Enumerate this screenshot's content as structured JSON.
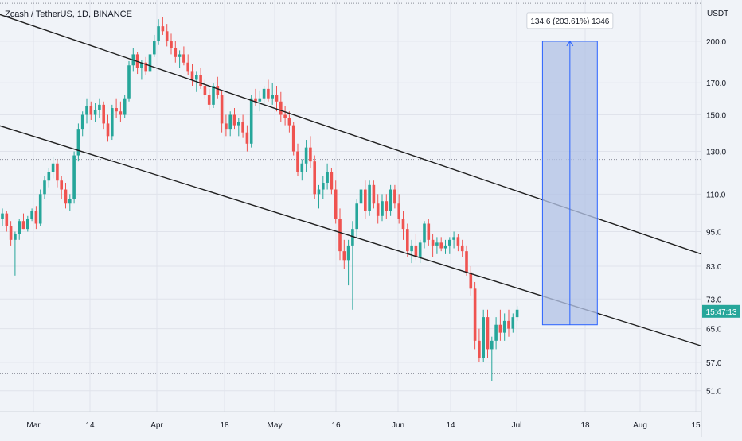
{
  "header": {
    "symbol_line": "Zcash / TetherUS, 1D, BINANCE"
  },
  "price_axis": {
    "unit": "USDT",
    "ticks": [
      "200.0",
      "170.0",
      "150.0",
      "130.0",
      "110.0",
      "95.0",
      "83.0",
      "73.0",
      "65.0",
      "57.0",
      "51.0"
    ],
    "current_price_label": "15:47:13"
  },
  "measure_tool": {
    "label": "134.6 (203.61%) 1346",
    "from_price": 66,
    "to_price": 200
  },
  "colors": {
    "background": "#f0f3f8",
    "up": "#26a69a",
    "down": "#ef5350",
    "trendline": "#1f1f1f",
    "measure_fill": "#b3c3e6",
    "measure_line": "#2962ff",
    "current_badge": "#26a69a"
  },
  "chart_data": {
    "type": "candlestick",
    "title": "Zcash / TetherUS, 1D, BINANCE",
    "y_unit": "USDT",
    "y_scale": "log",
    "ylim": [
      47,
      235
    ],
    "x_ticks": [
      "Mar",
      "14",
      "Apr",
      "18",
      "May",
      "16",
      "Jun",
      "14",
      "Jul",
      "18",
      "Aug",
      "15"
    ],
    "candles": [
      [
        100,
        104,
        97,
        102
      ],
      [
        102,
        103,
        95,
        97
      ],
      [
        97,
        99,
        90,
        92
      ],
      [
        92,
        95,
        80,
        94
      ],
      [
        94,
        100,
        92,
        99
      ],
      [
        99,
        102,
        96,
        96
      ],
      [
        96,
        101,
        95,
        100
      ],
      [
        100,
        104,
        99,
        103
      ],
      [
        103,
        105,
        96,
        98
      ],
      [
        98,
        112,
        97,
        110
      ],
      [
        110,
        118,
        108,
        116
      ],
      [
        116,
        122,
        113,
        120
      ],
      [
        120,
        127,
        117,
        124
      ],
      [
        124,
        126,
        113,
        116
      ],
      [
        116,
        118,
        108,
        112
      ],
      [
        112,
        115,
        104,
        106
      ],
      [
        106,
        110,
        103,
        108
      ],
      [
        108,
        130,
        106,
        128
      ],
      [
        128,
        145,
        125,
        142
      ],
      [
        142,
        152,
        138,
        150
      ],
      [
        150,
        160,
        145,
        155
      ],
      [
        155,
        158,
        147,
        150
      ],
      [
        150,
        157,
        146,
        153
      ],
      [
        153,
        160,
        148,
        156
      ],
      [
        156,
        158,
        142,
        145
      ],
      [
        145,
        150,
        135,
        138
      ],
      [
        138,
        156,
        136,
        154
      ],
      [
        154,
        160,
        148,
        152
      ],
      [
        152,
        158,
        146,
        150
      ],
      [
        150,
        162,
        148,
        160
      ],
      [
        160,
        185,
        158,
        182
      ],
      [
        182,
        195,
        178,
        190
      ],
      [
        190,
        192,
        176,
        180
      ],
      [
        180,
        186,
        172,
        184
      ],
      [
        184,
        188,
        175,
        178
      ],
      [
        178,
        192,
        176,
        190
      ],
      [
        190,
        205,
        188,
        200
      ],
      [
        200,
        218,
        197,
        212
      ],
      [
        212,
        220,
        205,
        208
      ],
      [
        208,
        214,
        196,
        200
      ],
      [
        200,
        206,
        190,
        195
      ],
      [
        195,
        200,
        184,
        188
      ],
      [
        188,
        193,
        180,
        190
      ],
      [
        190,
        196,
        182,
        184
      ],
      [
        184,
        190,
        175,
        178
      ],
      [
        178,
        183,
        168,
        172
      ],
      [
        172,
        178,
        164,
        175
      ],
      [
        175,
        180,
        166,
        168
      ],
      [
        168,
        172,
        160,
        162
      ],
      [
        162,
        166,
        153,
        156
      ],
      [
        156,
        170,
        154,
        168
      ],
      [
        168,
        174,
        160,
        162
      ],
      [
        162,
        165,
        140,
        145
      ],
      [
        145,
        150,
        138,
        142
      ],
      [
        142,
        152,
        138,
        150
      ],
      [
        150,
        154,
        142,
        144
      ],
      [
        144,
        148,
        138,
        146
      ],
      [
        146,
        150,
        137,
        140
      ],
      [
        140,
        144,
        130,
        134
      ],
      [
        134,
        162,
        132,
        160
      ],
      [
        160,
        166,
        155,
        158
      ],
      [
        158,
        165,
        152,
        160
      ],
      [
        160,
        168,
        155,
        166
      ],
      [
        166,
        172,
        158,
        160
      ],
      [
        160,
        170,
        156,
        162
      ],
      [
        162,
        168,
        152,
        158
      ],
      [
        158,
        164,
        146,
        150
      ],
      [
        150,
        155,
        144,
        148
      ],
      [
        148,
        152,
        140,
        144
      ],
      [
        144,
        146,
        128,
        130
      ],
      [
        130,
        134,
        118,
        120
      ],
      [
        120,
        126,
        116,
        124
      ],
      [
        124,
        136,
        120,
        132
      ],
      [
        132,
        138,
        122,
        125
      ],
      [
        125,
        128,
        108,
        110
      ],
      [
        110,
        114,
        104,
        112
      ],
      [
        112,
        118,
        108,
        115
      ],
      [
        115,
        124,
        112,
        120
      ],
      [
        120,
        122,
        110,
        112
      ],
      [
        112,
        116,
        98,
        100
      ],
      [
        100,
        104,
        85,
        88
      ],
      [
        88,
        92,
        82,
        85
      ],
      [
        85,
        92,
        77,
        90
      ],
      [
        90,
        99,
        70,
        96
      ],
      [
        96,
        108,
        93,
        106
      ],
      [
        106,
        114,
        103,
        112
      ],
      [
        112,
        116,
        100,
        103
      ],
      [
        103,
        116,
        101,
        114
      ],
      [
        114,
        116,
        104,
        106
      ],
      [
        106,
        110,
        98,
        101
      ],
      [
        101,
        110,
        99,
        107
      ],
      [
        107,
        110,
        100,
        103
      ],
      [
        103,
        114,
        101,
        112
      ],
      [
        112,
        114,
        104,
        106
      ],
      [
        106,
        110,
        98,
        100
      ],
      [
        100,
        103,
        92,
        96
      ],
      [
        96,
        98,
        86,
        88
      ],
      [
        88,
        92,
        84,
        90
      ],
      [
        90,
        94,
        85,
        86
      ],
      [
        86,
        92,
        84,
        91
      ],
      [
        91,
        99,
        89,
        98
      ],
      [
        98,
        100,
        90,
        92
      ],
      [
        92,
        94,
        86,
        90
      ],
      [
        90,
        93,
        87,
        91
      ],
      [
        91,
        93,
        88,
        89
      ],
      [
        89,
        92,
        87,
        90
      ],
      [
        90,
        93,
        87,
        92
      ],
      [
        92,
        95,
        89,
        93
      ],
      [
        93,
        94,
        88,
        90
      ],
      [
        90,
        92,
        86,
        88
      ],
      [
        88,
        90,
        80,
        81
      ],
      [
        81,
        83,
        74,
        76
      ],
      [
        76,
        78,
        60,
        62
      ],
      [
        62,
        65,
        57,
        58
      ],
      [
        58,
        70,
        57,
        68
      ],
      [
        68,
        70,
        58,
        60
      ],
      [
        60,
        63,
        53,
        62
      ],
      [
        62,
        68,
        60,
        66
      ],
      [
        66,
        70,
        62,
        64
      ],
      [
        64,
        69,
        62,
        67
      ],
      [
        67,
        70,
        63,
        65
      ],
      [
        65,
        69,
        64,
        68
      ],
      [
        68,
        71,
        67,
        70
      ]
    ],
    "trendlines": [
      {
        "name": "upper-channel",
        "from": [
          -30,
          262
        ],
        "to": [
          252,
          53.5
        ]
      },
      {
        "name": "lower-channel",
        "from": [
          -5,
          147
        ],
        "to": [
          228,
          44
        ]
      }
    ],
    "horizontal_lines": [
      232,
      126,
      54.5
    ],
    "legend": null,
    "grid": true
  }
}
